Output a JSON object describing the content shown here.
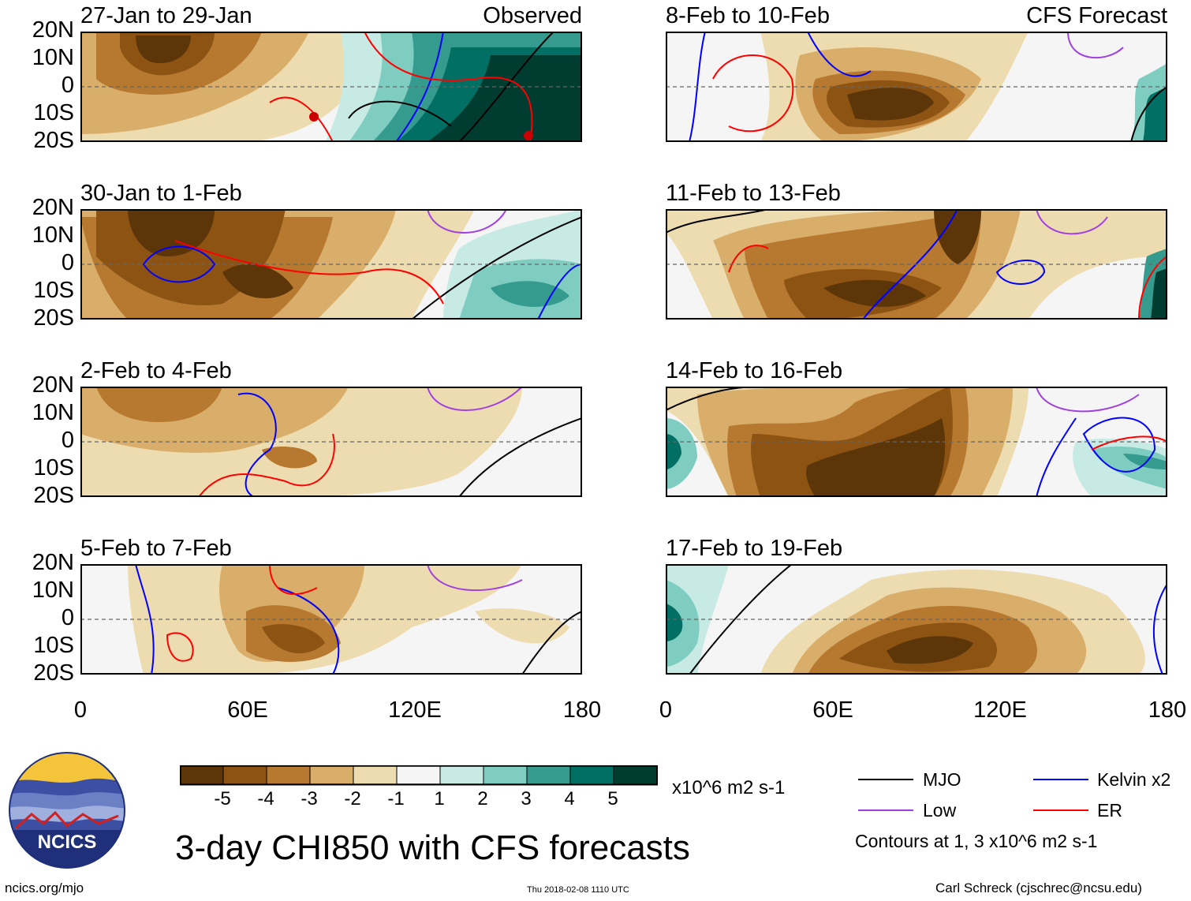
{
  "panels_left": [
    {
      "title": "27-Jan to 29-Jan",
      "tag": "Observed"
    },
    {
      "title": "30-Jan to 1-Feb",
      "tag": ""
    },
    {
      "title": "2-Feb to 4-Feb",
      "tag": ""
    },
    {
      "title": "5-Feb to 7-Feb",
      "tag": ""
    }
  ],
  "panels_right": [
    {
      "title": "8-Feb to 10-Feb",
      "tag": "CFS Forecast"
    },
    {
      "title": "11-Feb to 13-Feb",
      "tag": ""
    },
    {
      "title": "14-Feb to 16-Feb",
      "tag": ""
    },
    {
      "title": "17-Feb to 19-Feb",
      "tag": ""
    }
  ],
  "lat_labels": [
    "20N",
    "10N",
    "0",
    "10S",
    "20S"
  ],
  "lon_labels": [
    "0",
    "60E",
    "120E",
    "180"
  ],
  "colorbar": {
    "labels": [
      "-5",
      "-4",
      "-3",
      "-2",
      "-1",
      "1",
      "2",
      "3",
      "4",
      "5"
    ],
    "colors": [
      "#5c3508",
      "#8c5312",
      "#b7792f",
      "#d9ad6a",
      "#eedcb1",
      "#f5f5f5",
      "#c7eae4",
      "#7fcdc0",
      "#359b8e",
      "#016f63",
      "#003c30"
    ],
    "units": "x10^6 m2 s-1"
  },
  "legend": {
    "mjo": {
      "label": "MJO",
      "color": "#000000"
    },
    "kelvin": {
      "label": "Kelvin x2",
      "color": "#0000ff"
    },
    "low": {
      "label": "Low",
      "color": "#a040e0"
    },
    "er": {
      "label": "ER",
      "color": "#ff0000"
    },
    "note": "Contours at 1, 3 x10^6 m2 s-1"
  },
  "logo": {
    "text": "NCICS"
  },
  "footer": {
    "title": "3-day CHI850 with CFS forecasts",
    "url": "ncics.org/mjo",
    "timestamp": "Thu 2018-02-08 1110 UTC",
    "credit": "Carl Schreck (cjschrec@ncsu.edu)"
  }
}
